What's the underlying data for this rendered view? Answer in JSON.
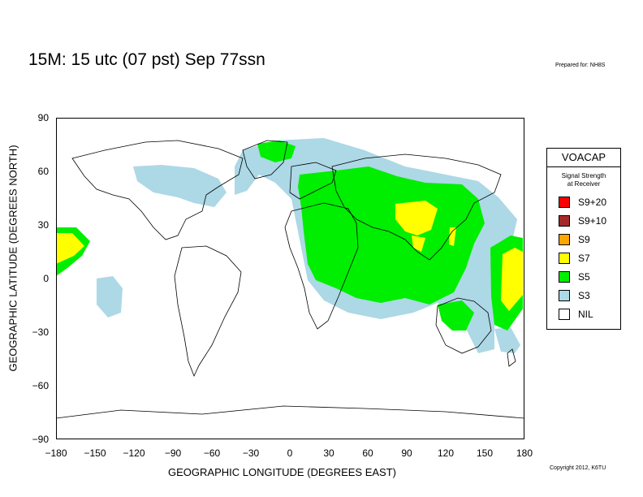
{
  "title": "15M:  15 utc (07 pst) Sep 77ssn",
  "prepared_for": "Prepared for: NH8S",
  "copyright": "Copyright 2012, K6TU",
  "xaxis": {
    "label": "GEOGRAPHIC LONGITUDE (DEGREES EAST)",
    "ticks": [
      "−180",
      "−150",
      "−120",
      "−90",
      "−60",
      "−30",
      "0",
      "30",
      "60",
      "90",
      "120",
      "150",
      "180"
    ],
    "range": [
      -180,
      180
    ]
  },
  "yaxis": {
    "label": "GEOGRAPHIC LATITUDE (DEGREES NORTH)",
    "ticks": [
      "90",
      "60",
      "30",
      "0",
      "−30",
      "−60",
      "−90"
    ],
    "range": [
      -90,
      90
    ]
  },
  "legend": {
    "title": "VOACAP",
    "subtitle_line1": "Signal Strength",
    "subtitle_line2": "at Receiver",
    "items": [
      {
        "label": "S9+20",
        "color": "#ff0000"
      },
      {
        "label": "S9+10",
        "color": "#a52a2a"
      },
      {
        "label": "S9",
        "color": "#ffa500"
      },
      {
        "label": "S7",
        "color": "#ffff00"
      },
      {
        "label": "S5",
        "color": "#00ee00"
      },
      {
        "label": "S3",
        "color": "#add8e6"
      },
      {
        "label": "NIL",
        "color": "#ffffff"
      }
    ]
  }
}
